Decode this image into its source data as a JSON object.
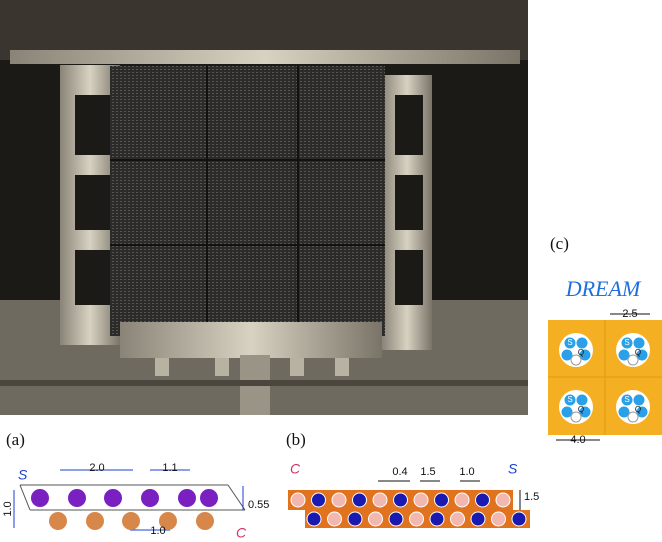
{
  "panels": {
    "a": {
      "label": "(a)",
      "fiber_labels": [
        "S",
        "C"
      ],
      "dims": [
        "2.0",
        "1.1",
        "1.0",
        "0.55",
        "1.0"
      ]
    },
    "b": {
      "label": "(b)",
      "fiber_labels": [
        "C",
        "S"
      ],
      "dims": [
        "0.4",
        "1.5",
        "1.0",
        "1.5"
      ]
    },
    "c": {
      "label": "(c)",
      "title": "DREAM",
      "dims": [
        "2.5",
        "4.0"
      ],
      "fiber_labels": [
        "S",
        "Q"
      ]
    }
  }
}
